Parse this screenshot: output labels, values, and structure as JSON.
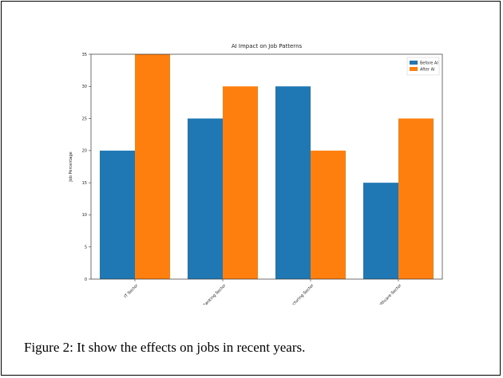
{
  "caption": "Figure 2: It show the effects on jobs in recent years.",
  "chart_data": {
    "type": "bar",
    "title": "AI Impact on Job Patterns",
    "xlabel": "",
    "ylabel": "Job Percentage",
    "categories": [
      "IT Sector",
      "Banking Sector",
      "Manufacturing Sector",
      "Healthcare Sector"
    ],
    "series": [
      {
        "name": "Before AI",
        "values": [
          20,
          25,
          30,
          15
        ],
        "color": "#1f77b4"
      },
      {
        "name": "After AI",
        "values": [
          35,
          30,
          20,
          25
        ],
        "color": "#ff7f0e"
      }
    ],
    "ylim": [
      0,
      35
    ],
    "yticks": [
      0,
      5,
      10,
      15,
      20,
      25,
      30,
      35
    ],
    "grid": false,
    "legend": "top-right"
  }
}
